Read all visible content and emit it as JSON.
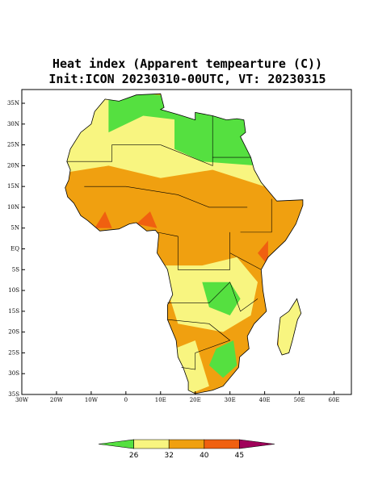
{
  "header": {
    "title": "Heat index (Apparent tempearture (C))",
    "subtitle": "Init:ICON 20230310-00UTC, VT: 20230315"
  },
  "map": {
    "xlim": [
      -30,
      65
    ],
    "ylim": [
      -35,
      38.3
    ],
    "xticks": [
      {
        "value": -30,
        "label": "30W"
      },
      {
        "value": -20,
        "label": "20W"
      },
      {
        "value": -10,
        "label": "10W"
      },
      0,
      {
        "value": 10,
        "label": "10E"
      },
      {
        "value": 20,
        "label": "20E"
      },
      {
        "value": 30,
        "label": "30E"
      },
      {
        "value": 40,
        "label": "40E"
      },
      {
        "value": 50,
        "label": "50E"
      },
      {
        "value": 60,
        "label": "60E"
      }
    ],
    "yticks": [
      {
        "value": 35,
        "label": "35N"
      },
      {
        "value": 30,
        "label": "30N"
      },
      {
        "value": 25,
        "label": "25N"
      },
      {
        "value": 20,
        "label": "20N"
      },
      {
        "value": 15,
        "label": "15N"
      },
      {
        "value": 10,
        "label": "10N"
      },
      {
        "value": 5,
        "label": "5N"
      },
      {
        "value": 0,
        "label": "EQ"
      },
      {
        "value": -5,
        "label": "5S"
      },
      {
        "value": -10,
        "label": "10S"
      },
      {
        "value": -15,
        "label": "15S"
      },
      {
        "value": -20,
        "label": "20S"
      },
      {
        "value": -25,
        "label": "25S"
      },
      {
        "value": -30,
        "label": "30S"
      },
      {
        "value": -35,
        "label": "35S"
      }
    ]
  },
  "colorbar": {
    "levels": [
      26,
      32,
      40,
      45
    ],
    "colors": [
      "#55e040",
      "#f8f580",
      "#f0a010",
      "#f06010",
      "#a0005a"
    ]
  }
}
